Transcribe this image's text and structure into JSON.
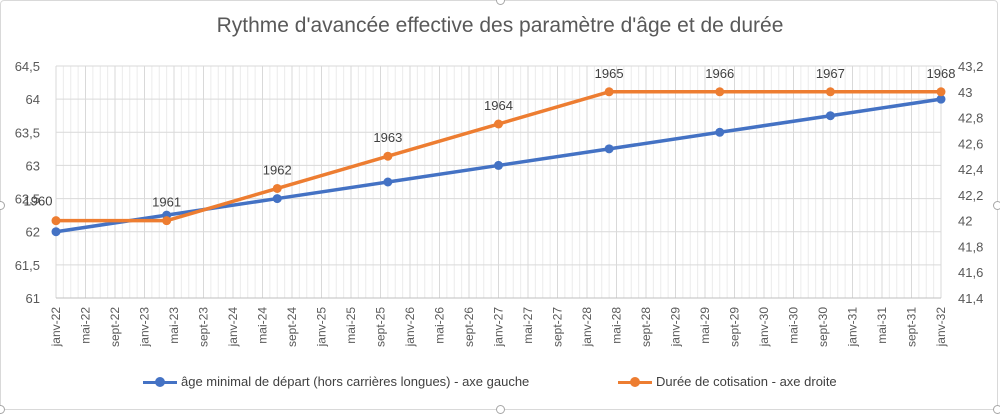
{
  "chart_data": {
    "type": "line",
    "title": "Rythme d'avancée effective des paramètre d'âge et de durée",
    "categories": [
      "janv-22",
      "mai-22",
      "sept-22",
      "janv-23",
      "mai-23",
      "sept-23",
      "janv-24",
      "mai-24",
      "sept-24",
      "janv-25",
      "mai-25",
      "sept-25",
      "janv-26",
      "mai-26",
      "sept-26",
      "janv-27",
      "mai-27",
      "sept-27",
      "janv-28",
      "mai-28",
      "sept-28",
      "janv-29",
      "mai-29",
      "sept-29",
      "janv-30",
      "mai-30",
      "sept-30",
      "janv-31",
      "mai-31",
      "sept-31",
      "janv-32"
    ],
    "y_left": {
      "min": 61,
      "max": 64.5,
      "step": 0.5,
      "tick_labels": [
        "61",
        "61,5",
        "62",
        "62,5",
        "63",
        "63,5",
        "64",
        "64,5"
      ]
    },
    "y_right": {
      "min": 41.4,
      "max": 43.2,
      "step": 0.2,
      "tick_labels": [
        "41,4",
        "41,6",
        "41,8",
        "42",
        "42,2",
        "42,4",
        "42,6",
        "42,8",
        "43",
        "43,2"
      ]
    },
    "series": [
      {
        "name": "âge minimal de départ (hors carrières longues) - axe gauche",
        "axis": "left",
        "color": "#4472C4",
        "points": [
          {
            "x": 0,
            "y": 62
          },
          {
            "x": 3.75,
            "y": 62.25
          },
          {
            "x": 7.5,
            "y": 62.5
          },
          {
            "x": 11.25,
            "y": 62.75
          },
          {
            "x": 15,
            "y": 63
          },
          {
            "x": 18.75,
            "y": 63.25
          },
          {
            "x": 22.5,
            "y": 63.5
          },
          {
            "x": 26.25,
            "y": 63.75
          },
          {
            "x": 30,
            "y": 64
          }
        ]
      },
      {
        "name": "Durée de cotisation - axe droite",
        "axis": "right",
        "color": "#ED7D31",
        "points": [
          {
            "x": 0,
            "y": 42,
            "label": "1960"
          },
          {
            "x": 3.75,
            "y": 42,
            "label": "1961"
          },
          {
            "x": 7.5,
            "y": 42.25,
            "label": "1962"
          },
          {
            "x": 11.25,
            "y": 42.5,
            "label": "1963"
          },
          {
            "x": 15,
            "y": 42.75,
            "label": "1964"
          },
          {
            "x": 18.75,
            "y": 43,
            "label": "1965"
          },
          {
            "x": 22.5,
            "y": 43,
            "label": "1966"
          },
          {
            "x": 26.25,
            "y": 43,
            "label": "1967"
          },
          {
            "x": 30,
            "y": 43,
            "label": "1968"
          }
        ]
      }
    ],
    "legend": "bottom",
    "grid": true
  }
}
